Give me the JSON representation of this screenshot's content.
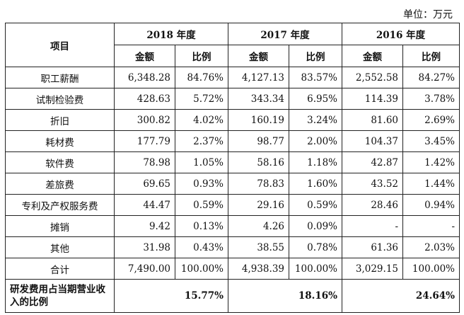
{
  "unit_label": "单位：万元",
  "header": {
    "item": "项目",
    "years": [
      "2018 年度",
      "2017 年度",
      "2016 年度"
    ],
    "amount": "金额",
    "ratio": "比例"
  },
  "rows": [
    {
      "label": "职工薪酬",
      "values": [
        "6,348.28",
        "84.76%",
        "4,127.13",
        "83.57%",
        "2,552.58",
        "84.27%"
      ]
    },
    {
      "label": "试制检验费",
      "values": [
        "428.63",
        "5.72%",
        "343.34",
        "6.95%",
        "114.39",
        "3.78%"
      ]
    },
    {
      "label": "折旧",
      "values": [
        "300.82",
        "4.02%",
        "160.19",
        "3.24%",
        "81.60",
        "2.69%"
      ]
    },
    {
      "label": "耗材费",
      "values": [
        "177.79",
        "2.37%",
        "98.77",
        "2.00%",
        "104.37",
        "3.45%"
      ]
    },
    {
      "label": "软件费",
      "values": [
        "78.98",
        "1.05%",
        "58.16",
        "1.18%",
        "42.87",
        "1.42%"
      ]
    },
    {
      "label": "差旅费",
      "values": [
        "69.65",
        "0.93%",
        "78.83",
        "1.60%",
        "43.52",
        "1.44%"
      ]
    },
    {
      "label": "专利及产权服务费",
      "values": [
        "44.47",
        "0.59%",
        "29.16",
        "0.59%",
        "28.46",
        "0.94%"
      ]
    },
    {
      "label": "摊销",
      "values": [
        "9.42",
        "0.13%",
        "4.26",
        "0.09%",
        "-",
        "-"
      ]
    },
    {
      "label": "其他",
      "values": [
        "31.98",
        "0.43%",
        "38.55",
        "0.78%",
        "61.36",
        "2.03%"
      ]
    },
    {
      "label": "合计",
      "values": [
        "7,490.00",
        "100.00%",
        "4,938.39",
        "100.00%",
        "3,029.15",
        "100.00%"
      ]
    }
  ],
  "ratio_row": {
    "label": "研发费用占当期营业收入的比例",
    "values": [
      "15.77%",
      "18.16%",
      "24.64%"
    ]
  }
}
